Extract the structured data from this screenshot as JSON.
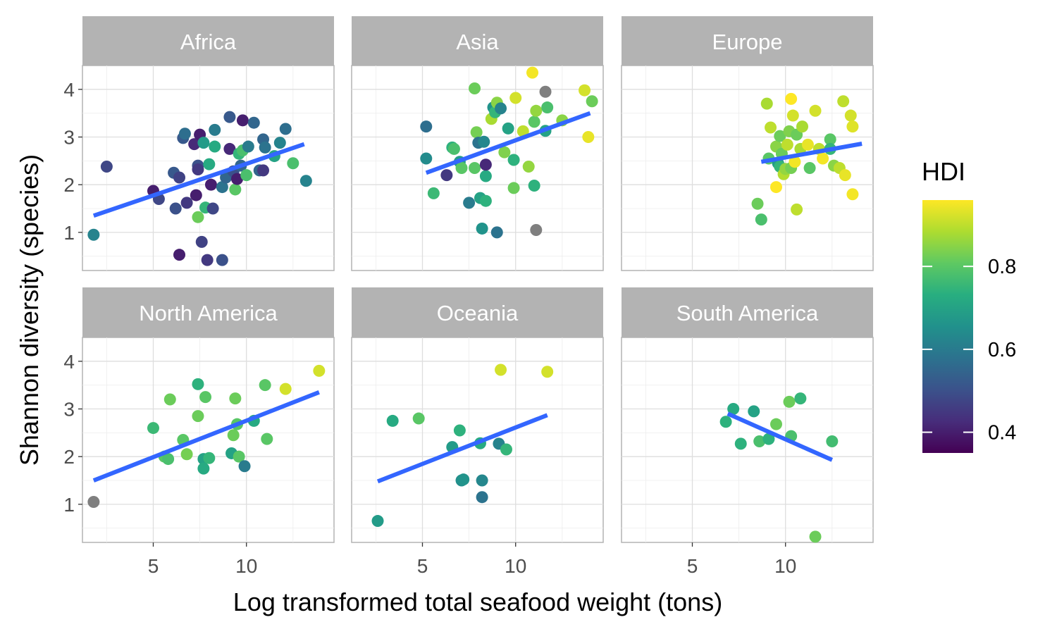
{
  "chart_data": {
    "type": "scatter",
    "xlabel": "Log transformed total seafood weight (tons)",
    "ylabel": "Shannon diversity (species)",
    "xlim": [
      1.2,
      14.7
    ],
    "ylim": [
      0.2,
      4.5
    ],
    "xticks": [
      5,
      10
    ],
    "yticks": [
      1,
      2,
      3,
      4
    ],
    "grid": true,
    "legend": {
      "title": "HDI",
      "placement": "right",
      "range": [
        0.35,
        0.96
      ],
      "ticks": [
        0.4,
        0.6,
        0.8
      ]
    },
    "na_color": "#7f7f7f",
    "fit_color": "#3366ff",
    "panels": [
      {
        "name": "Africa",
        "fit": [
          [
            1.8,
            1.35
          ],
          [
            13.1,
            2.85
          ]
        ],
        "points": [
          [
            1.8,
            0.95,
            0.62
          ],
          [
            2.5,
            2.38,
            0.48
          ],
          [
            5.0,
            1.87,
            0.4
          ],
          [
            5.3,
            1.7,
            0.48
          ],
          [
            6.1,
            2.25,
            0.52
          ],
          [
            6.2,
            1.5,
            0.5
          ],
          [
            6.4,
            0.53,
            0.4
          ],
          [
            6.4,
            2.15,
            0.47
          ],
          [
            6.6,
            2.98,
            0.52
          ],
          [
            6.7,
            3.07,
            0.57
          ],
          [
            6.8,
            1.62,
            0.45
          ],
          [
            7.2,
            2.85,
            0.42
          ],
          [
            7.3,
            1.78,
            0.4
          ],
          [
            7.4,
            2.4,
            0.5
          ],
          [
            7.4,
            2.32,
            0.45
          ],
          [
            7.5,
            3.05,
            0.4
          ],
          [
            7.6,
            0.8,
            0.47
          ],
          [
            7.7,
            2.88,
            0.68
          ],
          [
            7.8,
            1.52,
            0.75
          ],
          [
            7.4,
            1.32,
            0.82
          ],
          [
            7.9,
            0.42,
            0.45
          ],
          [
            8.0,
            2.43,
            0.72
          ],
          [
            8.1,
            2.0,
            0.4
          ],
          [
            8.2,
            1.5,
            0.48
          ],
          [
            8.3,
            2.8,
            0.72
          ],
          [
            8.3,
            3.15,
            0.6
          ],
          [
            8.7,
            0.42,
            0.5
          ],
          [
            8.7,
            1.95,
            0.58
          ],
          [
            8.9,
            2.15,
            0.55
          ],
          [
            9.1,
            2.75,
            0.42
          ],
          [
            9.1,
            3.42,
            0.52
          ],
          [
            9.3,
            2.28,
            0.5
          ],
          [
            9.4,
            1.9,
            0.8
          ],
          [
            9.5,
            2.12,
            0.4
          ],
          [
            9.6,
            2.65,
            0.75
          ],
          [
            9.7,
            2.4,
            0.55
          ],
          [
            9.8,
            3.35,
            0.4
          ],
          [
            9.8,
            2.72,
            0.78
          ],
          [
            10.0,
            2.2,
            0.78
          ],
          [
            10.1,
            2.8,
            0.6
          ],
          [
            10.4,
            3.3,
            0.55
          ],
          [
            10.7,
            2.3,
            0.55
          ],
          [
            10.9,
            2.95,
            0.55
          ],
          [
            10.9,
            2.3,
            0.45
          ],
          [
            11.0,
            2.78,
            0.58
          ],
          [
            11.5,
            2.6,
            0.7
          ],
          [
            11.8,
            2.88,
            0.62
          ],
          [
            12.1,
            3.17,
            0.57
          ],
          [
            12.5,
            2.45,
            0.78
          ],
          [
            13.2,
            2.08,
            0.62
          ]
        ]
      },
      {
        "name": "Asia",
        "fit": [
          [
            5.2,
            2.25
          ],
          [
            14.0,
            3.5
          ]
        ],
        "points": [
          [
            5.2,
            3.22,
            0.57
          ],
          [
            5.2,
            2.55,
            0.64
          ],
          [
            5.6,
            1.82,
            0.76
          ],
          [
            6.3,
            2.2,
            0.45
          ],
          [
            6.6,
            2.78,
            0.74
          ],
          [
            6.7,
            2.75,
            0.78
          ],
          [
            7.0,
            2.48,
            0.68
          ],
          [
            7.1,
            2.35,
            0.8
          ],
          [
            7.5,
            1.62,
            0.6
          ],
          [
            7.8,
            2.35,
            0.8
          ],
          [
            7.8,
            4.02,
            0.82
          ],
          [
            7.9,
            3.1,
            0.83
          ],
          [
            8.0,
            2.88,
            0.58
          ],
          [
            8.1,
            1.72,
            0.7
          ],
          [
            8.2,
            1.08,
            0.66
          ],
          [
            8.3,
            2.9,
            0.63
          ],
          [
            8.4,
            2.18,
            0.72
          ],
          [
            8.4,
            2.42,
            0.42
          ],
          [
            8.4,
            1.66,
            0.74
          ],
          [
            8.7,
            3.38,
            0.88
          ],
          [
            8.8,
            3.62,
            0.66
          ],
          [
            8.9,
            3.52,
            0.75
          ],
          [
            9.0,
            1.0,
            0.58
          ],
          [
            9.0,
            3.72,
            0.85
          ],
          [
            9.2,
            3.6,
            0.62
          ],
          [
            9.4,
            2.68,
            0.84
          ],
          [
            9.6,
            3.18,
            0.7
          ],
          [
            9.9,
            1.93,
            0.82
          ],
          [
            9.9,
            2.52,
            0.74
          ],
          [
            10.0,
            3.82,
            0.92
          ],
          [
            10.4,
            3.12,
            0.9
          ],
          [
            10.7,
            2.38,
            0.86
          ],
          [
            10.9,
            4.35,
            0.95
          ],
          [
            11.0,
            1.98,
            0.74
          ],
          [
            11.0,
            3.32,
            0.8
          ],
          [
            11.1,
            3.55,
            0.86
          ],
          [
            11.1,
            1.05,
            null
          ],
          [
            11.6,
            3.13,
            0.7
          ],
          [
            11.6,
            3.95,
            null
          ],
          [
            11.7,
            3.62,
            0.78
          ],
          [
            12.5,
            3.35,
            0.85
          ],
          [
            13.7,
            3.98,
            0.92
          ],
          [
            13.9,
            3.0,
            0.94
          ],
          [
            14.1,
            3.75,
            0.82
          ]
        ]
      },
      {
        "name": "Europe",
        "fit": [
          [
            8.7,
            2.48
          ],
          [
            14.1,
            2.86
          ]
        ],
        "points": [
          [
            8.5,
            1.6,
            0.82
          ],
          [
            8.7,
            1.27,
            0.78
          ],
          [
            9.0,
            3.7,
            0.88
          ],
          [
            9.1,
            2.55,
            0.8
          ],
          [
            9.2,
            3.2,
            0.9
          ],
          [
            9.5,
            2.8,
            0.85
          ],
          [
            9.5,
            1.95,
            0.96
          ],
          [
            9.6,
            2.45,
            0.68
          ],
          [
            9.7,
            2.38,
            0.75
          ],
          [
            9.7,
            3.02,
            0.82
          ],
          [
            9.8,
            2.65,
            0.82
          ],
          [
            9.9,
            2.22,
            0.89
          ],
          [
            10.0,
            2.33,
            0.86
          ],
          [
            10.1,
            2.84,
            0.9
          ],
          [
            10.2,
            3.12,
            0.84
          ],
          [
            10.3,
            2.35,
            0.83
          ],
          [
            10.3,
            3.8,
            0.96
          ],
          [
            10.4,
            3.45,
            0.92
          ],
          [
            10.5,
            2.48,
            0.95
          ],
          [
            10.6,
            3.05,
            0.82
          ],
          [
            10.6,
            1.48,
            0.9
          ],
          [
            10.8,
            2.75,
            0.88
          ],
          [
            10.9,
            3.22,
            0.88
          ],
          [
            11.2,
            2.84,
            0.94
          ],
          [
            11.3,
            2.35,
            0.8
          ],
          [
            11.6,
            3.55,
            0.92
          ],
          [
            11.8,
            2.75,
            0.9
          ],
          [
            12.0,
            2.55,
            0.95
          ],
          [
            12.4,
            2.95,
            0.8
          ],
          [
            12.4,
            2.75,
            0.75
          ],
          [
            12.6,
            2.4,
            0.85
          ],
          [
            12.9,
            2.35,
            0.9
          ],
          [
            13.1,
            3.75,
            0.9
          ],
          [
            13.2,
            2.2,
            0.94
          ],
          [
            13.5,
            3.45,
            0.92
          ],
          [
            13.6,
            3.22,
            0.93
          ],
          [
            13.6,
            1.8,
            0.95
          ]
        ]
      },
      {
        "name": "North America",
        "fit": [
          [
            1.8,
            1.5
          ],
          [
            13.9,
            3.35
          ]
        ],
        "points": [
          [
            1.8,
            1.05,
            null
          ],
          [
            5.0,
            2.6,
            0.76
          ],
          [
            5.6,
            2.0,
            0.8
          ],
          [
            5.8,
            1.95,
            0.78
          ],
          [
            5.9,
            3.2,
            0.82
          ],
          [
            6.6,
            2.35,
            0.8
          ],
          [
            6.8,
            2.05,
            0.83
          ],
          [
            7.4,
            3.52,
            0.74
          ],
          [
            7.4,
            2.85,
            0.82
          ],
          [
            7.7,
            1.95,
            0.7
          ],
          [
            7.7,
            1.75,
            0.72
          ],
          [
            7.8,
            3.25,
            0.8
          ],
          [
            8.0,
            1.97,
            0.75
          ],
          [
            9.2,
            2.07,
            0.7
          ],
          [
            9.3,
            2.45,
            0.82
          ],
          [
            9.4,
            3.22,
            0.82
          ],
          [
            9.5,
            2.68,
            0.8
          ],
          [
            9.6,
            2.0,
            0.8
          ],
          [
            9.9,
            1.8,
            0.6
          ],
          [
            10.4,
            2.75,
            0.72
          ],
          [
            11.0,
            3.5,
            0.8
          ],
          [
            11.1,
            2.37,
            0.8
          ],
          [
            12.1,
            3.42,
            0.92
          ],
          [
            13.9,
            3.8,
            0.92
          ]
        ]
      },
      {
        "name": "Oceania",
        "fit": [
          [
            2.6,
            1.48
          ],
          [
            11.7,
            2.87
          ]
        ],
        "points": [
          [
            2.6,
            0.65,
            0.68
          ],
          [
            3.4,
            2.75,
            0.72
          ],
          [
            4.8,
            2.8,
            0.8
          ],
          [
            6.6,
            2.2,
            0.68
          ],
          [
            7.0,
            2.55,
            0.74
          ],
          [
            7.1,
            1.5,
            0.65
          ],
          [
            7.2,
            1.52,
            0.66
          ],
          [
            8.1,
            2.28,
            0.72
          ],
          [
            8.2,
            1.5,
            0.63
          ],
          [
            8.2,
            1.15,
            0.58
          ],
          [
            9.1,
            2.27,
            0.62
          ],
          [
            9.2,
            3.82,
            0.92
          ],
          [
            9.5,
            2.15,
            0.75
          ],
          [
            11.7,
            3.78,
            0.92
          ]
        ]
      },
      {
        "name": "South America",
        "fit": [
          [
            6.9,
            2.9
          ],
          [
            12.5,
            1.93
          ]
        ],
        "points": [
          [
            6.8,
            2.73,
            0.74
          ],
          [
            7.2,
            3.0,
            0.72
          ],
          [
            7.6,
            2.27,
            0.74
          ],
          [
            8.3,
            2.95,
            0.7
          ],
          [
            8.6,
            2.32,
            0.78
          ],
          [
            9.1,
            2.37,
            0.74
          ],
          [
            9.5,
            2.68,
            0.82
          ],
          [
            10.2,
            3.15,
            0.82
          ],
          [
            10.3,
            2.43,
            0.78
          ],
          [
            10.8,
            3.22,
            0.75
          ],
          [
            11.6,
            0.32,
            0.82
          ],
          [
            12.5,
            2.32,
            0.77
          ]
        ]
      }
    ]
  }
}
